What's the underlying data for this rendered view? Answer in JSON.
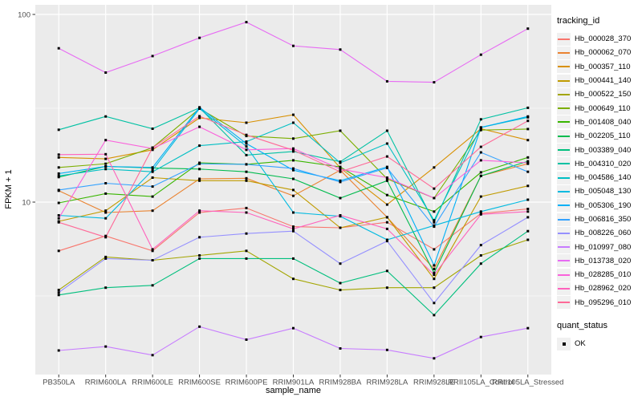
{
  "chart_data": {
    "type": "line",
    "title": "",
    "xlabel": "sample_name",
    "ylabel": "FPKM + 1",
    "y_scale": "log10",
    "ylim": [
      1.2,
      110
    ],
    "y_major_ticks": [
      10,
      100
    ],
    "y_tick_labels": [
      "10",
      "100"
    ],
    "y_minor_gridlines": [
      3.1623,
      31.623
    ],
    "grid": "on",
    "legend_position": "right",
    "legend_title": "tracking_id",
    "categories": [
      "PB350LA",
      "RRIM600LA",
      "RRIM600LE",
      "RRIM600SE",
      "RRIM600PE",
      "RRIM901LA",
      "RRIM928BA",
      "RRIM928LA",
      "RRIM928LE",
      "RRII105LA_Control",
      "RRII105LA_Stressed"
    ],
    "series": [
      {
        "name": "Hb_000028_370",
        "color": "#F8766D",
        "values": [
          5.5,
          6.6,
          5.5,
          8.8,
          9.3,
          7.4,
          7.3,
          7.8,
          5.6,
          8.7,
          9.2
        ]
      },
      {
        "name": "Hb_000062_070",
        "color": "#EA8331",
        "values": [
          11.5,
          8.8,
          9.0,
          13.3,
          13.4,
          10.8,
          14.8,
          8.3,
          4.4,
          13.8,
          16.0
        ]
      },
      {
        "name": "Hb_000357_110",
        "color": "#D89000",
        "values": [
          17.3,
          17.0,
          19.0,
          28.1,
          26.5,
          29.2,
          15.2,
          9.7,
          15.3,
          24.6,
          21.4
        ]
      },
      {
        "name": "Hb_000441_140",
        "color": "#C09B00",
        "values": [
          7.9,
          9.0,
          13.5,
          13.0,
          13.0,
          11.6,
          7.3,
          8.3,
          3.9,
          10.7,
          12.2
        ]
      },
      {
        "name": "Hb_000522_150",
        "color": "#A3A500",
        "values": [
          3.4,
          5.1,
          4.9,
          5.2,
          5.5,
          3.9,
          3.4,
          3.5,
          3.5,
          5.2,
          6.3
        ]
      },
      {
        "name": "Hb_000649_110",
        "color": "#7CAE00",
        "values": [
          15.3,
          16.0,
          19.5,
          31.5,
          22.5,
          21.8,
          24.0,
          13.3,
          10.5,
          24.2,
          24.5
        ]
      },
      {
        "name": "Hb_001408_040",
        "color": "#39B600",
        "values": [
          9.9,
          11.1,
          10.7,
          16.2,
          15.9,
          16.7,
          15.4,
          10.9,
          8.9,
          14.4,
          17.3
        ]
      },
      {
        "name": "Hb_002205_110",
        "color": "#00BB4E",
        "values": [
          13.6,
          15.5,
          15.2,
          15.0,
          14.5,
          13.3,
          10.5,
          13.0,
          4.2,
          13.8,
          16.5
        ]
      },
      {
        "name": "Hb_003389_040",
        "color": "#00BF7D",
        "values": [
          3.2,
          3.5,
          3.6,
          5.0,
          5.0,
          5.0,
          3.7,
          4.3,
          2.5,
          4.7,
          7.0
        ]
      },
      {
        "name": "Hb_004310_020",
        "color": "#00C1A3",
        "values": [
          24.3,
          28.6,
          24.6,
          31.8,
          17.8,
          18.6,
          16.4,
          24.0,
          7.8,
          27.6,
          31.8
        ]
      },
      {
        "name": "Hb_004586_140",
        "color": "#00BFC4",
        "values": [
          13.8,
          15.0,
          14.5,
          20.0,
          21.0,
          26.5,
          16.2,
          20.5,
          8.0,
          25.0,
          28.3
        ]
      },
      {
        "name": "Hb_005048_130",
        "color": "#00BAE0",
        "values": [
          8.5,
          8.2,
          14.8,
          31.5,
          19.8,
          8.8,
          8.4,
          6.3,
          7.5,
          8.9,
          10.3
        ]
      },
      {
        "name": "Hb_005306_190",
        "color": "#00B0F6",
        "values": [
          14.2,
          15.5,
          15.3,
          32.0,
          20.5,
          14.8,
          13.0,
          15.4,
          4.6,
          25.0,
          28.6
        ]
      },
      {
        "name": "Hb_006816_350",
        "color": "#35A2FF",
        "values": [
          11.6,
          12.6,
          12.1,
          16.0,
          15.9,
          15.1,
          12.8,
          15.2,
          7.4,
          18.4,
          14.5
        ]
      },
      {
        "name": "Hb_008226_060",
        "color": "#9590FF",
        "values": [
          3.3,
          5.0,
          4.9,
          6.5,
          6.8,
          7.0,
          4.7,
          6.2,
          2.9,
          5.9,
          8.3
        ]
      },
      {
        "name": "Hb_010997_080",
        "color": "#C77CFF",
        "values": [
          1.62,
          1.7,
          1.53,
          2.17,
          1.85,
          2.13,
          1.66,
          1.63,
          1.47,
          1.91,
          2.13
        ]
      },
      {
        "name": "Hb_013738_020",
        "color": "#E76BF3",
        "values": [
          66,
          49,
          60,
          75,
          91,
          68,
          65,
          44,
          43.5,
          61,
          84
        ]
      },
      {
        "name": "Hb_028285_010",
        "color": "#FA62DB",
        "values": [
          8.2,
          21.4,
          19.3,
          25.2,
          19.0,
          19.3,
          15.0,
          13.5,
          10.5,
          16.7,
          16.2
        ]
      },
      {
        "name": "Hb_028962_020",
        "color": "#FF62BC",
        "values": [
          17.9,
          18.0,
          5.6,
          9.0,
          8.8,
          7.2,
          8.5,
          7.2,
          4.1,
          8.6,
          8.9
        ]
      },
      {
        "name": "Hb_095296_010",
        "color": "#FF6A98",
        "values": [
          7.8,
          6.5,
          19.5,
          28.7,
          22.8,
          18.9,
          14.5,
          17.5,
          11.8,
          19.7,
          27.1
        ]
      }
    ],
    "point_shape": "filled-square",
    "point_color": "#000000"
  },
  "axes": {
    "x_title": "sample_name",
    "y_title": "FPKM + 1"
  },
  "legend2": {
    "title": "quant_status",
    "items": [
      {
        "label": "OK"
      }
    ]
  },
  "colors": {
    "panel_background": "#EBEBEB",
    "gridline": "#FFFFFF",
    "tick_text": "#4D4D4D",
    "tick_mark": "#333333",
    "legend_key_background": "#F0F0F0"
  }
}
